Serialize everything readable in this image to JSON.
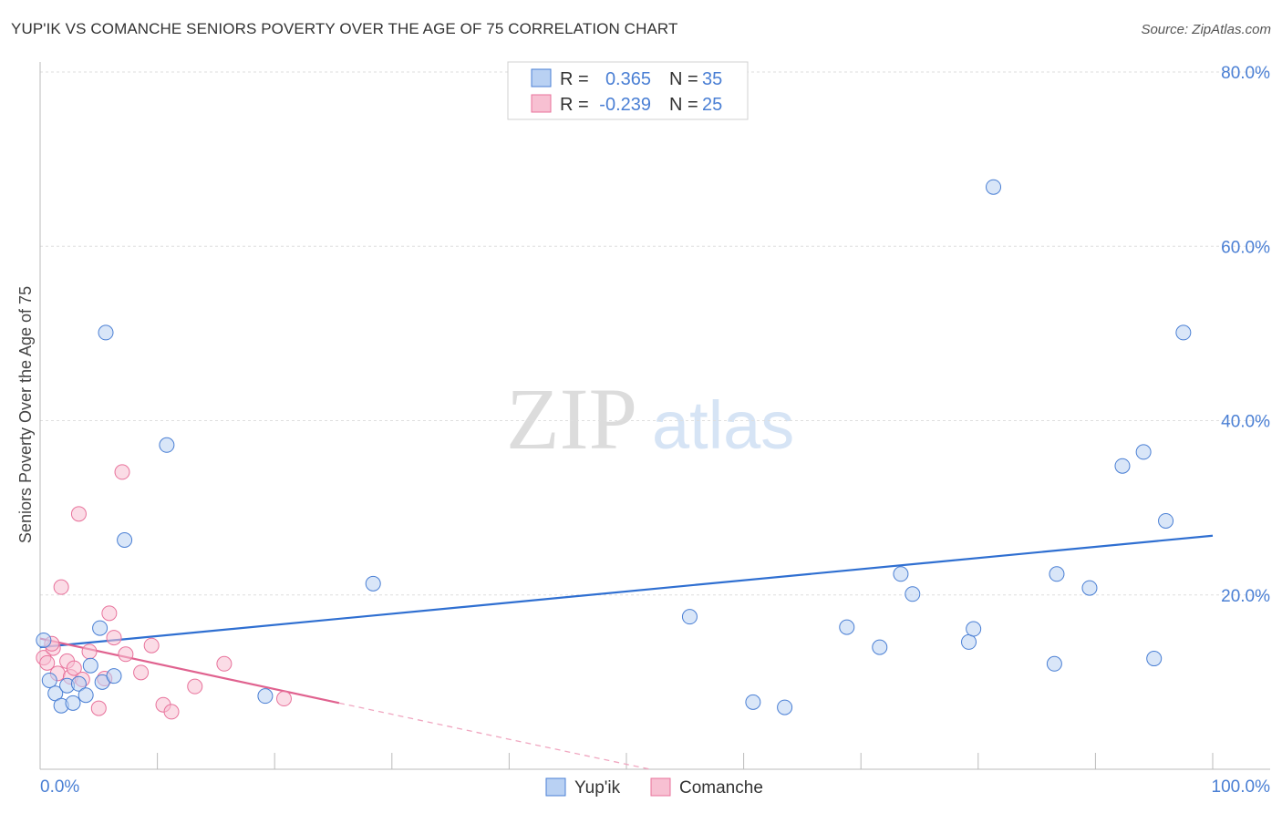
{
  "header": {
    "title": "YUP'IK VS COMANCHE SENIORS POVERTY OVER THE AGE OF 75 CORRELATION CHART",
    "source": "Source: ZipAtlas.com"
  },
  "watermark": {
    "zip": "ZIP",
    "atlas": "atlas"
  },
  "legend_top": [
    {
      "r_label": "R =",
      "r_value": "0.365",
      "n_label": "N =",
      "n_value": "35"
    },
    {
      "r_label": "R =",
      "r_value": "-0.239",
      "n_label": "N =",
      "n_value": "25"
    }
  ],
  "chart_data": {
    "type": "scatter",
    "title": "YUP'IK VS COMANCHE SENIORS POVERTY OVER THE AGE OF 75 CORRELATION CHART",
    "xlabel": "",
    "ylabel": "Seniors Poverty Over the Age of 75",
    "xlim": [
      0,
      100
    ],
    "ylim": [
      0,
      80
    ],
    "x_tick_labels": [
      "0.0%",
      "100.0%"
    ],
    "y_ticks": [
      20,
      40,
      60,
      80
    ],
    "y_tick_labels": [
      "20.0%",
      "40.0%",
      "60.0%",
      "80.0%"
    ],
    "colors": {
      "yupik": "#4a7fd4",
      "yupik_fill": "#b9d1f3",
      "comanche": "#e8729b",
      "comanche_fill": "#f7c0d2",
      "text_blue": "#4a7fd4"
    },
    "series": [
      {
        "name": "Yup'ik",
        "points": [
          [
            0.3,
            14.8
          ],
          [
            0.8,
            10.2
          ],
          [
            1.3,
            8.7
          ],
          [
            1.8,
            7.3
          ],
          [
            2.3,
            9.6
          ],
          [
            2.8,
            7.6
          ],
          [
            3.3,
            9.8
          ],
          [
            3.9,
            8.5
          ],
          [
            4.3,
            11.9
          ],
          [
            5.1,
            16.2
          ],
          [
            5.6,
            50.1
          ],
          [
            5.3,
            10.0
          ],
          [
            6.3,
            10.7
          ],
          [
            7.2,
            26.3
          ],
          [
            10.8,
            37.2
          ],
          [
            19.2,
            8.4
          ],
          [
            28.4,
            21.3
          ],
          [
            55.4,
            17.5
          ],
          [
            60.8,
            7.7
          ],
          [
            63.5,
            7.1
          ],
          [
            68.8,
            16.3
          ],
          [
            71.6,
            14.0
          ],
          [
            73.4,
            22.4
          ],
          [
            74.4,
            20.1
          ],
          [
            79.2,
            14.6
          ],
          [
            79.6,
            16.1
          ],
          [
            81.3,
            66.8
          ],
          [
            86.5,
            12.1
          ],
          [
            86.7,
            22.4
          ],
          [
            89.5,
            20.8
          ],
          [
            92.3,
            34.8
          ],
          [
            94.1,
            36.4
          ],
          [
            95.0,
            12.7
          ],
          [
            96.0,
            28.5
          ],
          [
            97.5,
            50.1
          ]
        ],
        "trend": {
          "x0": 0,
          "y0": 14.0,
          "x1": 100,
          "y1": 26.8
        }
      },
      {
        "name": "Comanche",
        "points": [
          [
            0.3,
            12.8
          ],
          [
            0.6,
            12.2
          ],
          [
            1.1,
            13.9
          ],
          [
            1.5,
            11.0
          ],
          [
            1.8,
            20.9
          ],
          [
            2.3,
            12.4
          ],
          [
            2.6,
            10.6
          ],
          [
            2.9,
            11.6
          ],
          [
            3.3,
            29.3
          ],
          [
            3.6,
            10.3
          ],
          [
            4.2,
            13.5
          ],
          [
            5.0,
            7.0
          ],
          [
            5.5,
            10.4
          ],
          [
            5.9,
            17.9
          ],
          [
            6.3,
            15.1
          ],
          [
            7.0,
            34.1
          ],
          [
            7.3,
            13.2
          ],
          [
            8.6,
            11.1
          ],
          [
            9.5,
            14.2
          ],
          [
            10.5,
            7.4
          ],
          [
            11.2,
            6.6
          ],
          [
            13.2,
            9.5
          ],
          [
            15.7,
            12.1
          ],
          [
            20.8,
            8.1
          ],
          [
            1.0,
            14.4
          ]
        ],
        "trend": {
          "x0": 0,
          "y0": 15.0,
          "x1": 25.5,
          "y1": 7.6
        },
        "trend_dashed": {
          "x0": 25.5,
          "y0": 7.6,
          "x1": 52,
          "y1": 0
        }
      }
    ]
  },
  "legend_bottom": [
    {
      "label": "Yup'ik"
    },
    {
      "label": "Comanche"
    }
  ]
}
